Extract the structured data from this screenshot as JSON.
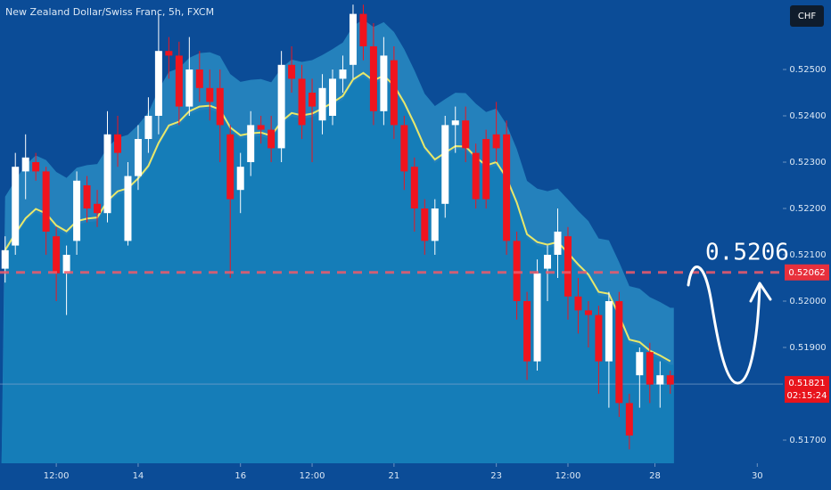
{
  "chart_data": {
    "type": "candlestick",
    "title": "New Zealand Dollar/Swiss Franc, 5h, FXCM",
    "currency": "CHF",
    "up_color": "#ffffff",
    "down_color": "#f0141e",
    "candles": {
      "open": [
        0.5207,
        0.5212,
        0.5228,
        0.523,
        0.5228,
        0.5214,
        0.5206,
        0.5213,
        0.5225,
        0.5221,
        0.5219,
        0.5236,
        0.5213,
        0.5227,
        0.5235,
        0.524,
        0.5254,
        0.5253,
        0.5242,
        0.525,
        0.5246,
        0.5246,
        0.5236,
        0.5224,
        0.523,
        0.5238,
        0.5237,
        0.5233,
        0.5251,
        0.5248,
        0.5245,
        0.5239,
        0.524,
        0.5248,
        0.5251,
        0.5262,
        0.5255,
        0.5241,
        0.5252,
        0.5238,
        0.5229,
        0.522,
        0.5213,
        0.5221,
        0.5238,
        0.5239,
        0.5232,
        0.5235,
        0.5236,
        0.5236,
        0.5213,
        0.52,
        0.5187,
        0.5207,
        0.521,
        0.5214,
        0.5201,
        0.5198,
        0.5197,
        0.5187,
        0.52,
        0.5178,
        0.5184,
        0.5189,
        0.5182,
        0.5184
      ],
      "high": [
        0.5214,
        0.5232,
        0.5236,
        0.5232,
        0.5229,
        0.5216,
        0.5212,
        0.5228,
        0.5227,
        0.5224,
        0.5241,
        0.524,
        0.523,
        0.5238,
        0.5244,
        0.5262,
        0.5257,
        0.5256,
        0.5257,
        0.5254,
        0.525,
        0.525,
        0.5238,
        0.5232,
        0.5241,
        0.524,
        0.524,
        0.5254,
        0.5255,
        0.5251,
        0.5248,
        0.5249,
        0.525,
        0.5253,
        0.5264,
        0.5264,
        0.526,
        0.5257,
        0.5255,
        0.524,
        0.5231,
        0.5222,
        0.5222,
        0.524,
        0.5242,
        0.5242,
        0.5234,
        0.5237,
        0.5243,
        0.5239,
        0.5215,
        0.5202,
        0.5209,
        0.5212,
        0.522,
        0.5216,
        0.5205,
        0.52,
        0.5199,
        0.5202,
        0.5202,
        0.518,
        0.519,
        0.5191,
        0.5187,
        0.5185
      ],
      "low": [
        0.5204,
        0.521,
        0.5222,
        0.5226,
        0.521,
        0.52,
        0.5197,
        0.521,
        0.5217,
        0.5216,
        0.5217,
        0.5229,
        0.5212,
        0.5224,
        0.5232,
        0.5236,
        0.5248,
        0.5238,
        0.524,
        0.5243,
        0.5239,
        0.523,
        0.5205,
        0.5219,
        0.5227,
        0.5234,
        0.523,
        0.523,
        0.5245,
        0.5235,
        0.523,
        0.5236,
        0.5238,
        0.5245,
        0.5248,
        0.5252,
        0.5238,
        0.5238,
        0.5235,
        0.5224,
        0.5215,
        0.521,
        0.521,
        0.5218,
        0.5232,
        0.523,
        0.522,
        0.522,
        0.523,
        0.521,
        0.5196,
        0.5183,
        0.5185,
        0.52,
        0.5205,
        0.5196,
        0.5193,
        0.519,
        0.518,
        0.5177,
        0.5175,
        0.5168,
        0.5177,
        0.5178,
        0.5177,
        0.518
      ],
      "close": [
        0.5211,
        0.5229,
        0.5231,
        0.5228,
        0.5215,
        0.5206,
        0.521,
        0.5226,
        0.522,
        0.5219,
        0.5236,
        0.5232,
        0.5227,
        0.5235,
        0.524,
        0.5254,
        0.5253,
        0.5242,
        0.525,
        0.5246,
        0.5243,
        0.5238,
        0.5222,
        0.5229,
        0.5238,
        0.5237,
        0.5233,
        0.5251,
        0.5248,
        0.5238,
        0.5242,
        0.5246,
        0.5248,
        0.525,
        0.5262,
        0.5255,
        0.5241,
        0.5253,
        0.5238,
        0.5228,
        0.522,
        0.5213,
        0.522,
        0.5238,
        0.5239,
        0.5233,
        0.5222,
        0.5222,
        0.5233,
        0.5213,
        0.52,
        0.5187,
        0.5206,
        0.521,
        0.5215,
        0.5201,
        0.5198,
        0.5197,
        0.5187,
        0.52,
        0.5178,
        0.5171,
        0.5189,
        0.5182,
        0.5184,
        0.5182
      ]
    },
    "xlim": [
      -0.5,
      76
    ],
    "xticks": [
      {
        "value": 5,
        "label": "12:00"
      },
      {
        "value": 13,
        "label": "14"
      },
      {
        "value": 23,
        "label": "16"
      },
      {
        "value": 30,
        "label": "12:00"
      },
      {
        "value": 38,
        "label": "21"
      },
      {
        "value": 48,
        "label": "23"
      },
      {
        "value": 55,
        "label": "12:00"
      },
      {
        "value": 63.5,
        "label": "28"
      },
      {
        "value": 73.5,
        "label": "30"
      }
    ],
    "ylim": [
      0.5165,
      0.5265
    ],
    "yticks": [
      {
        "value": 0.517,
        "label": "0.51700"
      },
      {
        "value": 0.519,
        "label": "0.51900"
      },
      {
        "value": 0.52,
        "label": "0.52000"
      },
      {
        "value": 0.521,
        "label": "0.52100"
      },
      {
        "value": 0.522,
        "label": "0.52200"
      },
      {
        "value": 0.523,
        "label": "0.52300"
      },
      {
        "value": 0.524,
        "label": "0.52400"
      },
      {
        "value": 0.525,
        "label": "0.52500"
      }
    ],
    "level": {
      "value": 0.52062,
      "label": "0.52062"
    },
    "target_label": "0.5206",
    "last_price": {
      "value": 0.51821,
      "label": "0.51821"
    },
    "countdown": "02:15:24"
  }
}
